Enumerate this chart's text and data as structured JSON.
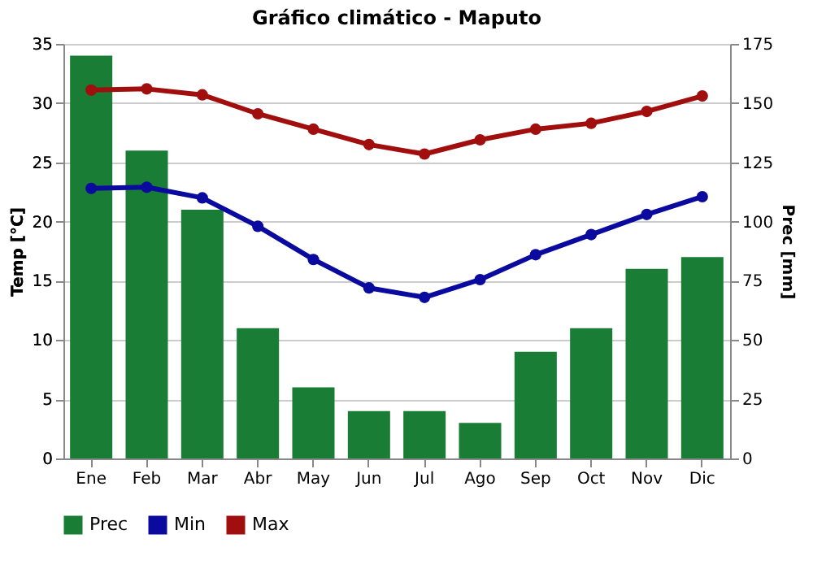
{
  "chart_data": {
    "type": "line",
    "title": "Gráfico climático - Maputo",
    "ylabel": "Temp [°C]",
    "y2label": "Prec [mm]",
    "categories": [
      "Ene",
      "Feb",
      "Mar",
      "Abr",
      "May",
      "Jun",
      "Jul",
      "Ago",
      "Sep",
      "Oct",
      "Nov",
      "Dic"
    ],
    "series": [
      {
        "name": "Prec",
        "type": "bar",
        "axis": "y2",
        "color": "#1a7d35",
        "values": [
          170,
          130,
          105,
          55,
          30,
          20,
          20,
          15,
          45,
          55,
          80,
          85
        ]
      },
      {
        "name": "Min",
        "color": "#0a0a9e",
        "values": [
          22.8,
          22.9,
          22.0,
          19.6,
          16.8,
          14.4,
          13.6,
          15.1,
          17.2,
          18.9,
          20.6,
          22.1
        ]
      },
      {
        "name": "Max",
        "color": "#a00e0e",
        "values": [
          31.1,
          31.2,
          30.7,
          29.1,
          27.8,
          26.5,
          25.7,
          26.9,
          27.8,
          28.3,
          29.3,
          30.6
        ]
      }
    ],
    "ylim": [
      0,
      35
    ],
    "yticks": [
      0,
      5,
      10,
      15,
      20,
      25,
      30,
      35
    ],
    "y2lim": [
      0,
      175
    ],
    "y2ticks": [
      0,
      25,
      50,
      75,
      100,
      125,
      150,
      175
    ],
    "grid": "y",
    "legend": "bottom",
    "marker": "circle",
    "line_style": "solid"
  }
}
